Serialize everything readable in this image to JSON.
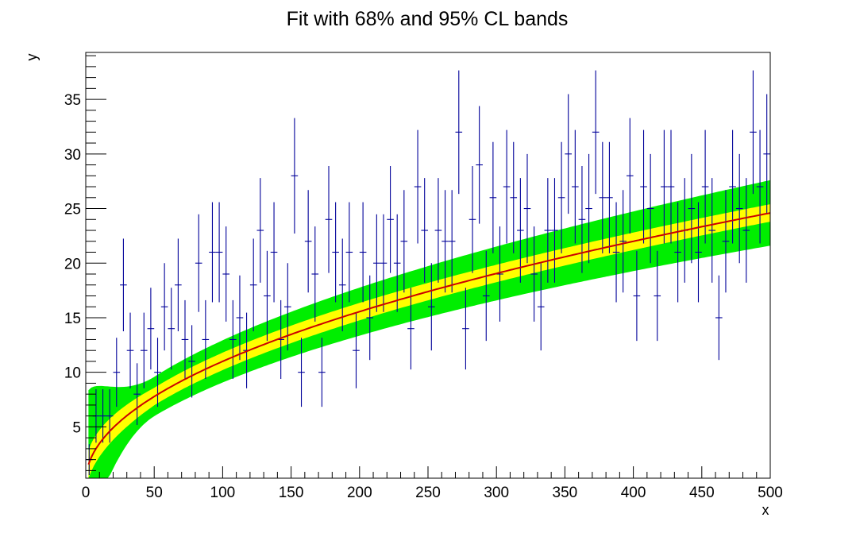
{
  "chart_data": {
    "type": "scatter",
    "title": "Fit with 68% and 95% CL bands",
    "xlabel": "x",
    "ylabel": "y",
    "xlim": [
      0,
      500
    ],
    "ylim": [
      0.3,
      39.3
    ],
    "x_ticks": [
      0,
      50,
      100,
      150,
      200,
      250,
      300,
      350,
      400,
      450,
      500
    ],
    "y_ticks": [
      5,
      10,
      15,
      20,
      25,
      30,
      35
    ],
    "grid": false,
    "legend": "none",
    "colors": {
      "points": "#000099",
      "fit_line": "#cc0000",
      "band_68": "#ffff00",
      "band_95": "#00ee00",
      "frame": "#000000"
    },
    "fit_model": "y = 1.1 * x^0.5",
    "band_68_halfwidth": {
      "at_x_2": 1.3,
      "at_x_50": 0.8,
      "at_x_500": 0.8
    },
    "band_95_halfwidth": {
      "at_x_2": 6.8,
      "at_x_50": 1.8,
      "at_x_500": 3.0
    },
    "points": [
      {
        "x": 2.5,
        "y": 2
      },
      {
        "x": 7.5,
        "y": 6
      },
      {
        "x": 12.5,
        "y": 6
      },
      {
        "x": 17.5,
        "y": 6
      },
      {
        "x": 22.5,
        "y": 10
      },
      {
        "x": 27.5,
        "y": 18
      },
      {
        "x": 32.5,
        "y": 12
      },
      {
        "x": 37.5,
        "y": 8
      },
      {
        "x": 42.5,
        "y": 12
      },
      {
        "x": 47.5,
        "y": 14
      },
      {
        "x": 52.5,
        "y": 10
      },
      {
        "x": 57.5,
        "y": 16
      },
      {
        "x": 62.5,
        "y": 14
      },
      {
        "x": 67.5,
        "y": 18
      },
      {
        "x": 72.5,
        "y": 13
      },
      {
        "x": 77.5,
        "y": 11
      },
      {
        "x": 82.5,
        "y": 20
      },
      {
        "x": 87.5,
        "y": 13
      },
      {
        "x": 92.5,
        "y": 21
      },
      {
        "x": 97.5,
        "y": 21
      },
      {
        "x": 102.5,
        "y": 19
      },
      {
        "x": 107.5,
        "y": 13
      },
      {
        "x": 112.5,
        "y": 15
      },
      {
        "x": 117.5,
        "y": 12
      },
      {
        "x": 122.5,
        "y": 18
      },
      {
        "x": 127.5,
        "y": 23
      },
      {
        "x": 132.5,
        "y": 17
      },
      {
        "x": 137.5,
        "y": 21
      },
      {
        "x": 142.5,
        "y": 13
      },
      {
        "x": 147.5,
        "y": 16
      },
      {
        "x": 152.5,
        "y": 28
      },
      {
        "x": 157.5,
        "y": 10
      },
      {
        "x": 162.5,
        "y": 22
      },
      {
        "x": 167.5,
        "y": 19
      },
      {
        "x": 172.5,
        "y": 10
      },
      {
        "x": 177.5,
        "y": 24
      },
      {
        "x": 182.5,
        "y": 21
      },
      {
        "x": 187.5,
        "y": 18
      },
      {
        "x": 192.5,
        "y": 21
      },
      {
        "x": 197.5,
        "y": 12
      },
      {
        "x": 202.5,
        "y": 21
      },
      {
        "x": 207.5,
        "y": 15
      },
      {
        "x": 212.5,
        "y": 20
      },
      {
        "x": 217.5,
        "y": 20
      },
      {
        "x": 222.5,
        "y": 24
      },
      {
        "x": 227.5,
        "y": 20
      },
      {
        "x": 232.5,
        "y": 22
      },
      {
        "x": 237.5,
        "y": 14
      },
      {
        "x": 242.5,
        "y": 27
      },
      {
        "x": 247.5,
        "y": 23
      },
      {
        "x": 252.5,
        "y": 16
      },
      {
        "x": 257.5,
        "y": 23
      },
      {
        "x": 262.5,
        "y": 22
      },
      {
        "x": 267.5,
        "y": 22
      },
      {
        "x": 272.5,
        "y": 32
      },
      {
        "x": 277.5,
        "y": 14
      },
      {
        "x": 282.5,
        "y": 24
      },
      {
        "x": 287.5,
        "y": 29
      },
      {
        "x": 292.5,
        "y": 17
      },
      {
        "x": 297.5,
        "y": 26
      },
      {
        "x": 302.5,
        "y": 19
      },
      {
        "x": 307.5,
        "y": 27
      },
      {
        "x": 312.5,
        "y": 26
      },
      {
        "x": 317.5,
        "y": 23
      },
      {
        "x": 322.5,
        "y": 25
      },
      {
        "x": 327.5,
        "y": 19
      },
      {
        "x": 332.5,
        "y": 16
      },
      {
        "x": 337.5,
        "y": 23
      },
      {
        "x": 342.5,
        "y": 23
      },
      {
        "x": 347.5,
        "y": 26
      },
      {
        "x": 352.5,
        "y": 30
      },
      {
        "x": 357.5,
        "y": 27
      },
      {
        "x": 362.5,
        "y": 24
      },
      {
        "x": 367.5,
        "y": 25
      },
      {
        "x": 372.5,
        "y": 32
      },
      {
        "x": 377.5,
        "y": 26
      },
      {
        "x": 382.5,
        "y": 26
      },
      {
        "x": 387.5,
        "y": 21
      },
      {
        "x": 392.5,
        "y": 22
      },
      {
        "x": 397.5,
        "y": 28
      },
      {
        "x": 402.5,
        "y": 17
      },
      {
        "x": 407.5,
        "y": 27
      },
      {
        "x": 412.5,
        "y": 25
      },
      {
        "x": 417.5,
        "y": 17
      },
      {
        "x": 422.5,
        "y": 27
      },
      {
        "x": 427.5,
        "y": 27
      },
      {
        "x": 432.5,
        "y": 21
      },
      {
        "x": 437.5,
        "y": 23
      },
      {
        "x": 442.5,
        "y": 25
      },
      {
        "x": 447.5,
        "y": 21
      },
      {
        "x": 452.5,
        "y": 27
      },
      {
        "x": 457.5,
        "y": 23
      },
      {
        "x": 462.5,
        "y": 15
      },
      {
        "x": 467.5,
        "y": 22
      },
      {
        "x": 472.5,
        "y": 27
      },
      {
        "x": 477.5,
        "y": 25
      },
      {
        "x": 482.5,
        "y": 23
      },
      {
        "x": 487.5,
        "y": 32
      },
      {
        "x": 492.5,
        "y": 27
      },
      {
        "x": 497.5,
        "y": 30
      }
    ]
  }
}
